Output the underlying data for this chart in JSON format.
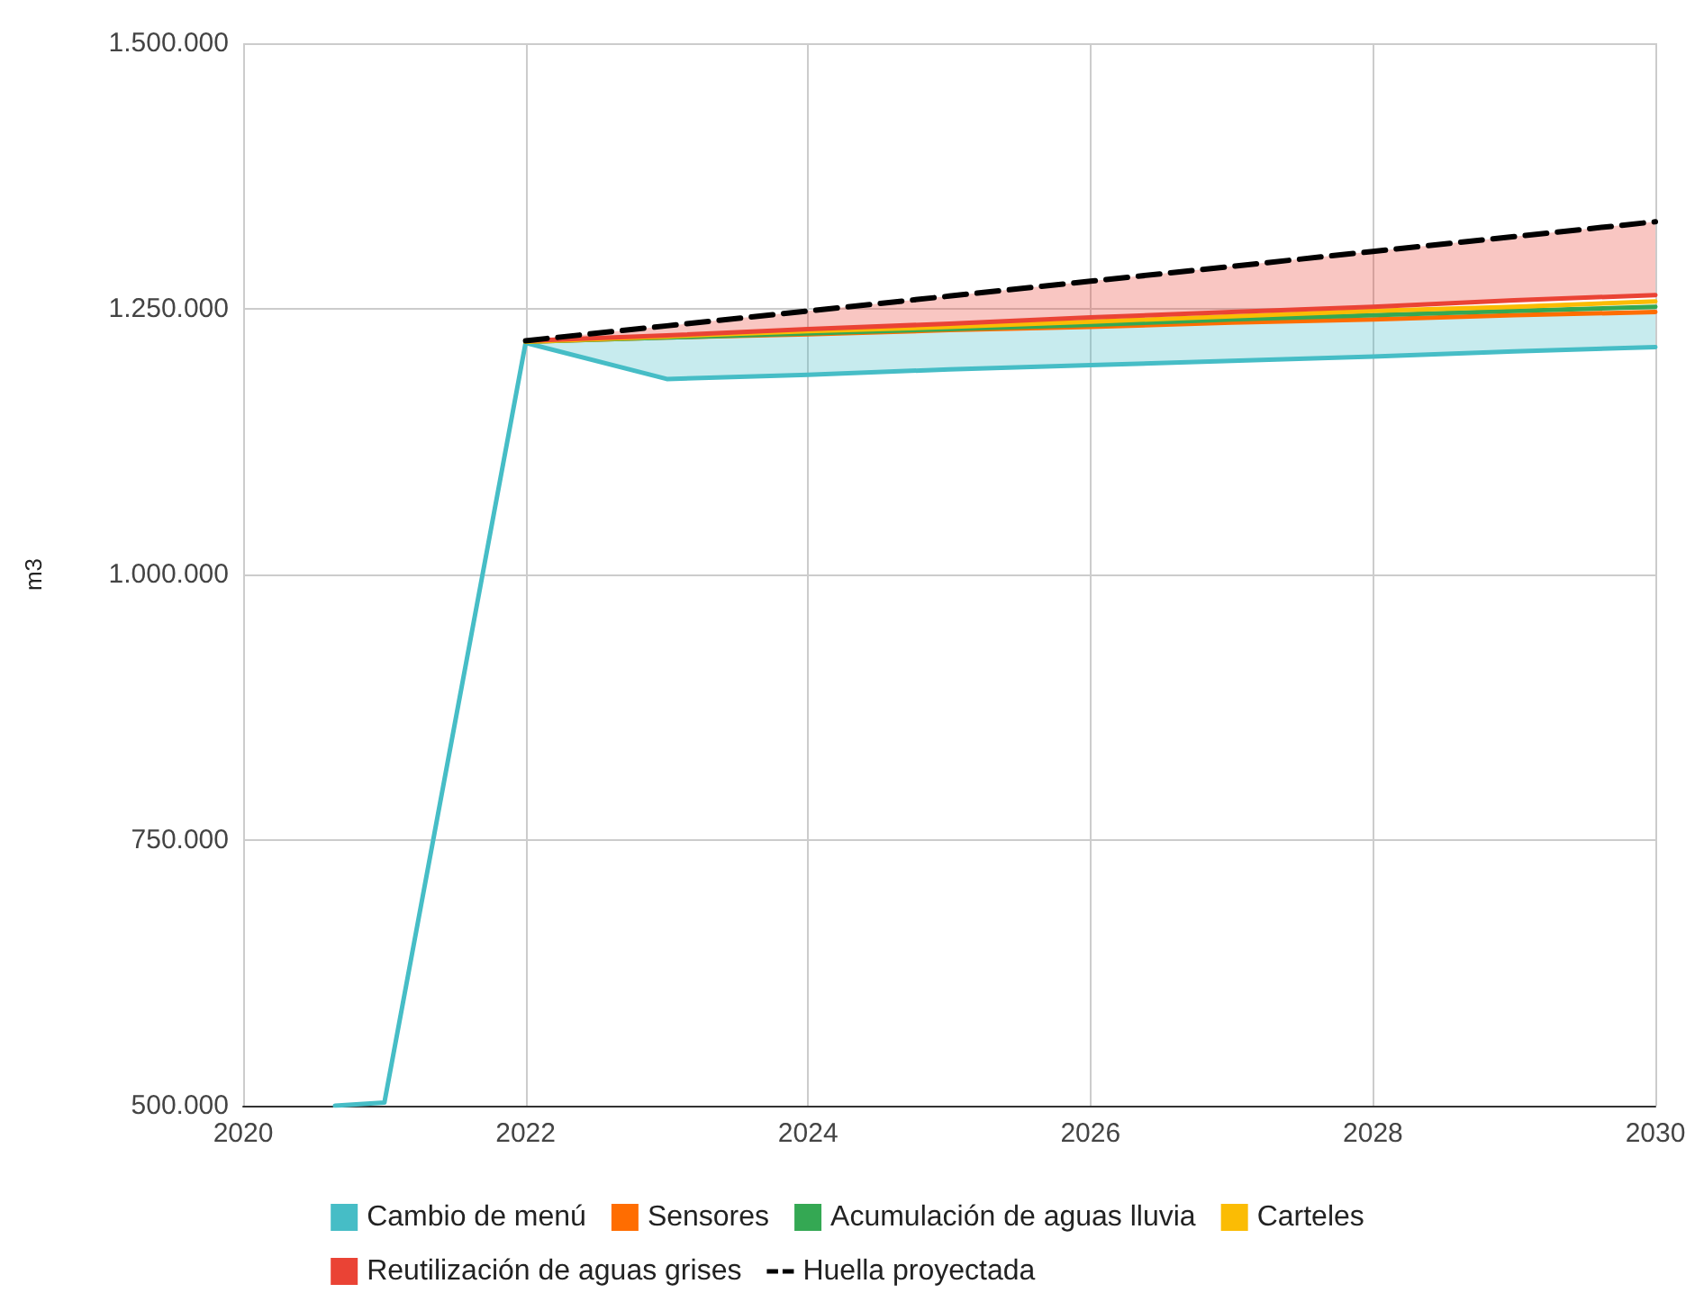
{
  "chart_data": {
    "type": "line",
    "ylabel": "m3",
    "x": [
      2020.65,
      2021,
      2022,
      2023,
      2024,
      2025,
      2026,
      2027,
      2028,
      2029,
      2030
    ],
    "series": [
      {
        "name": "Cambio de menú",
        "color": "#46bdc6",
        "values": [
          500000,
          503000,
          1218000,
          1184000,
          1188000,
          1193000,
          1197000,
          1201000,
          1205000,
          1210000,
          1214000
        ],
        "lower": [
          null,
          null,
          1218000,
          1184000,
          1188000,
          1193000,
          1197000,
          1201000,
          1205000,
          1210000,
          1214000
        ],
        "upper": [
          null,
          null,
          1219000,
          1223000,
          1226000,
          1230000,
          1233000,
          1237000,
          1240000,
          1244000,
          1247000
        ]
      },
      {
        "name": "Sensores",
        "color": "#ff6d01",
        "values": [
          null,
          null,
          1219000,
          1223000,
          1226000,
          1230000,
          1233000,
          1237000,
          1240000,
          1244000,
          1247000
        ]
      },
      {
        "name": "Acumulación de aguas lluvia",
        "color": "#34a853",
        "values": [
          null,
          null,
          1219000,
          1223000,
          1227000,
          1231000,
          1235000,
          1240000,
          1244000,
          1248000,
          1252000
        ]
      },
      {
        "name": "Carteles",
        "color": "#fbbc04",
        "values": [
          null,
          null,
          1219000,
          1224000,
          1229000,
          1233000,
          1238000,
          1243000,
          1248000,
          1252000,
          1257000
        ]
      },
      {
        "name": "Reutilización de aguas grises",
        "color": "#ea4335",
        "values": [
          null,
          null,
          1220000,
          1225000,
          1231000,
          1236000,
          1242000,
          1247000,
          1252000,
          1258000,
          1263000
        ],
        "lower": [
          null,
          null,
          1220000,
          1225000,
          1231000,
          1236000,
          1242000,
          1247000,
          1252000,
          1258000,
          1263000
        ],
        "upper": [
          null,
          null,
          1220000,
          1234000,
          1248000,
          1262000,
          1276000,
          1290000,
          1304000,
          1318000,
          1332000
        ]
      },
      {
        "name": "Huella proyectada",
        "color": "#000000",
        "line_style": "dashed",
        "values": [
          null,
          null,
          1220000,
          1234000,
          1248000,
          1262000,
          1276000,
          1290000,
          1304000,
          1318000,
          1332000
        ]
      }
    ],
    "xlim": [
      2020,
      2030
    ],
    "xticks": [
      2020,
      2022,
      2024,
      2026,
      2028,
      2030
    ],
    "ylim": [
      500000,
      1500000
    ],
    "yticks": [
      {
        "value": 500000,
        "label": "500.000"
      },
      {
        "value": 750000,
        "label": "750.000"
      },
      {
        "value": 1000000,
        "label": "1.000.000"
      },
      {
        "value": 1250000,
        "label": "1.250.000"
      },
      {
        "value": 1500000,
        "label": "1.500.000"
      }
    ],
    "grid": true,
    "legend": "bottom",
    "marker": "none"
  }
}
